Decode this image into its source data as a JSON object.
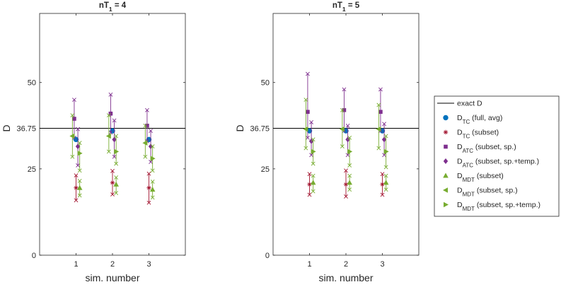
{
  "colors": {
    "tc_full": "#0072BD",
    "tc_subset": "#A2142F",
    "atc": "#7E2F8E",
    "mdt": "#77AC30",
    "exact": "#000000",
    "axis": "#262626"
  },
  "chart_data": [
    {
      "type": "errorbar",
      "title": "nT",
      "title_sub": "1",
      "title_rest": " = 4",
      "xlabel": "sim. number",
      "ylabel": "D",
      "xlim": [
        0,
        4
      ],
      "ylim": [
        0,
        70
      ],
      "yticks": [
        0,
        25,
        36.75,
        50
      ],
      "ytick_labels": [
        "0",
        "25",
        "36.75",
        "50"
      ],
      "xticks": [
        1,
        2,
        3
      ],
      "xtick_labels": [
        "1",
        "2",
        "3"
      ],
      "exact_D": 36.75,
      "series": [
        {
          "key": "tc_full",
          "marker": "circle",
          "offset": 0.0,
          "points": [
            [
              33.5,
              null,
              null
            ],
            [
              36.0,
              null,
              null
            ],
            [
              33.5,
              null,
              null
            ]
          ]
        },
        {
          "key": "tc_subset",
          "marker": "asterisk",
          "offset": 0.0,
          "points": [
            [
              19.5,
              15.9,
              23.1
            ],
            [
              21.0,
              17.6,
              24.4
            ],
            [
              19.5,
              15.2,
              23.6
            ]
          ]
        },
        {
          "key": "atc",
          "marker": "square",
          "offset": -0.05,
          "points": [
            [
              39.5,
              34.0,
              45.0
            ],
            [
              41.0,
              35.5,
              46.5
            ],
            [
              37.5,
              33.0,
              42.0
            ]
          ]
        },
        {
          "key": "atc_temp",
          "marker": "diamond",
          "offset": 0.05,
          "points": [
            [
              31.5,
              26.0,
              36.5
            ],
            [
              33.5,
              28.5,
              39.0
            ],
            [
              31.5,
              27.0,
              36.0
            ]
          ]
        },
        {
          "key": "mdt_subset",
          "marker": "triangle-up",
          "offset": 0.1,
          "points": [
            [
              19.5,
              17.3,
              21.5
            ],
            [
              20.5,
              18.0,
              22.5
            ],
            [
              19.0,
              16.7,
              21.3
            ]
          ]
        },
        {
          "key": "mdt_sp",
          "marker": "triangle-left",
          "offset": -0.1,
          "points": [
            [
              34.5,
              28.5,
              40.5
            ],
            [
              34.5,
              30.0,
              40.5
            ],
            [
              32.5,
              28.5,
              37.5
            ]
          ]
        },
        {
          "key": "mdt_sp_temp",
          "marker": "triangle-right",
          "offset": 0.1,
          "points": [
            [
              29.5,
              24.5,
              32.5
            ],
            [
              30.0,
              26.5,
              34.5
            ],
            [
              28.0,
              24.5,
              31.5
            ]
          ]
        }
      ]
    },
    {
      "type": "errorbar",
      "title": "nT",
      "title_sub": "1",
      "title_rest": " = 5",
      "xlabel": "sim. number",
      "ylabel": "D",
      "xlim": [
        0,
        4
      ],
      "ylim": [
        0,
        70
      ],
      "yticks": [
        0,
        25,
        36.75,
        50
      ],
      "ytick_labels": [
        "0",
        "25",
        "36.75",
        "50"
      ],
      "xticks": [
        1,
        2,
        3
      ],
      "xtick_labels": [
        "1",
        "2",
        "3"
      ],
      "exact_D": 36.75,
      "series": [
        {
          "key": "tc_full",
          "marker": "circle",
          "offset": 0.0,
          "points": [
            [
              36.0,
              null,
              null
            ],
            [
              36.0,
              null,
              null
            ],
            [
              36.0,
              null,
              null
            ]
          ]
        },
        {
          "key": "tc_subset",
          "marker": "asterisk",
          "offset": 0.0,
          "points": [
            [
              20.5,
              17.5,
              23.5
            ],
            [
              20.5,
              17.0,
              24.5
            ],
            [
              20.5,
              17.5,
              23.5
            ]
          ]
        },
        {
          "key": "atc",
          "marker": "square",
          "offset": -0.05,
          "points": [
            [
              41.5,
              34.0,
              52.5
            ],
            [
              42.0,
              36.0,
              48.0
            ],
            [
              41.5,
              36.0,
              48.0
            ]
          ]
        },
        {
          "key": "atc_temp",
          "marker": "diamond",
          "offset": 0.05,
          "points": [
            [
              33.0,
              29.0,
              38.5
            ],
            [
              33.5,
              29.0,
              37.5
            ],
            [
              33.5,
              29.0,
              38.0
            ]
          ]
        },
        {
          "key": "mdt_subset",
          "marker": "triangle-up",
          "offset": 0.1,
          "points": [
            [
              21.0,
              18.5,
              23.0
            ],
            [
              21.0,
              19.0,
              23.0
            ],
            [
              21.0,
              19.0,
              23.0
            ]
          ]
        },
        {
          "key": "mdt_sp",
          "marker": "triangle-left",
          "offset": -0.1,
          "points": [
            [
              36.5,
              31.0,
              45.0
            ],
            [
              36.5,
              31.5,
              42.0
            ],
            [
              36.5,
              31.0,
              43.5
            ]
          ]
        },
        {
          "key": "mdt_sp_temp",
          "marker": "triangle-right",
          "offset": 0.1,
          "points": [
            [
              30.0,
              26.5,
              33.5
            ],
            [
              30.0,
              26.0,
              34.0
            ],
            [
              30.0,
              25.5,
              34.5
            ]
          ]
        }
      ]
    }
  ],
  "legend": {
    "position": "right",
    "items": [
      {
        "key": "exact",
        "marker": "line",
        "main": "exact D",
        "sub": "",
        "rest": ""
      },
      {
        "key": "tc_full",
        "marker": "circle",
        "main": "D",
        "sub": "TC",
        "rest": " (full, avg)"
      },
      {
        "key": "tc_subset",
        "marker": "asterisk",
        "main": "D",
        "sub": "TC",
        "rest": " (subset)"
      },
      {
        "key": "atc",
        "marker": "square",
        "main": "D",
        "sub": "ATC",
        "rest": " (subset, sp.)"
      },
      {
        "key": "atc_temp",
        "marker": "diamond",
        "main": "D",
        "sub": "ATC",
        "rest": " (subset, sp.+temp.)"
      },
      {
        "key": "mdt_subset",
        "marker": "triangle-up",
        "main": "D",
        "sub": "MDT",
        "rest": " (subset)"
      },
      {
        "key": "mdt_sp",
        "marker": "triangle-left",
        "main": "D",
        "sub": "MDT",
        "rest": " (subset, sp.)"
      },
      {
        "key": "mdt_sp_temp",
        "marker": "triangle-right",
        "main": "D",
        "sub": "MDT",
        "rest": " (subset, sp.+temp.)"
      }
    ]
  }
}
